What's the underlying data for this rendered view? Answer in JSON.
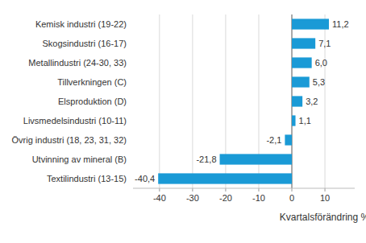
{
  "chart_data": {
    "type": "bar",
    "orientation": "horizontal",
    "x_label": "Kvartalsförändring %",
    "categories": [
      "Kemisk industri (19-22)",
      "Skogsindustri (16-17)",
      "Metallindustri (24-30, 33)",
      "Tillverkningen (C)",
      "Elsproduktion (D)",
      "Livsmedelsindustri (10-11)",
      "Övrig industri (18, 23, 31, 32)",
      "Utvinning av mineral (B)",
      "Textilindustri (13-15)"
    ],
    "values": [
      11.2,
      7.1,
      6.0,
      5.3,
      3.2,
      1.1,
      -2.1,
      -21.8,
      -40.4
    ],
    "value_labels": [
      "11,2",
      "7,1",
      "6,0",
      "5,3",
      "3,2",
      "1,1",
      "-2,1",
      "-21,8",
      "-40,4"
    ],
    "color": "#1a9ad6",
    "xlim": [
      -48,
      19
    ],
    "xticks": [
      -40,
      -30,
      -20,
      -10,
      0,
      10
    ],
    "grid": true,
    "data_labels": true
  }
}
